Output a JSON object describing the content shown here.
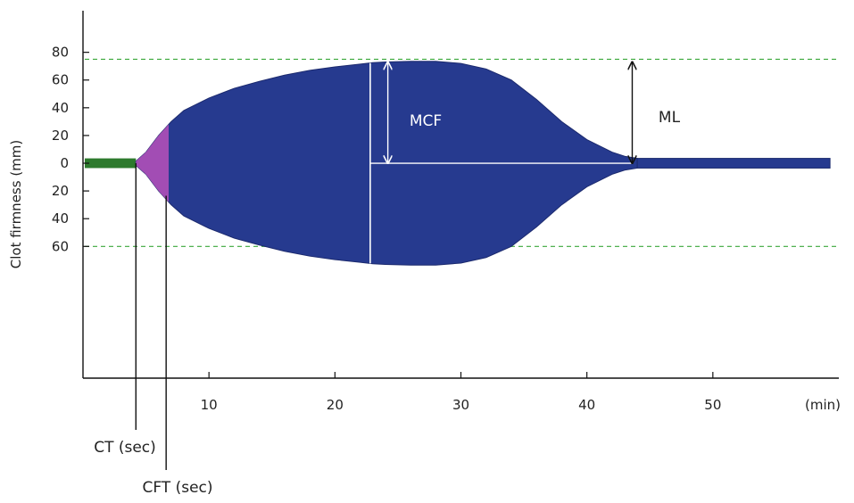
{
  "chart_data": {
    "type": "area",
    "ylabel": "Clot firmness (mm)",
    "x_unit_label": "(min)",
    "x_ticks": [
      10,
      20,
      30,
      40,
      50
    ],
    "xlim": [
      0,
      60
    ],
    "y_tick_labels": [
      "80",
      "60",
      "40",
      "20",
      "0",
      "20",
      "40",
      "60"
    ],
    "y_tick_values": [
      80,
      60,
      40,
      20,
      0,
      -20,
      -40,
      -60
    ],
    "ylim": [
      -155,
      110
    ],
    "grid": false,
    "reference_lines": [
      75,
      -60
    ],
    "baseline": {
      "x_start": 0,
      "x_end": 4.2,
      "color": "#2d7a2d"
    },
    "tail": {
      "x_start": 44,
      "x_end": 59.3,
      "half_width": 3.5
    },
    "clot_profile": {
      "x": [
        4.2,
        5,
        6,
        7,
        8,
        10,
        12,
        14,
        16,
        18,
        20,
        22,
        23,
        24,
        26,
        28,
        30,
        32,
        34,
        36,
        38,
        40,
        42,
        43,
        44
      ],
      "upper": [
        1.5,
        8,
        20,
        30,
        38,
        47,
        54,
        59,
        63.5,
        67,
        69.5,
        71.5,
        72.5,
        73,
        73.5,
        73.5,
        72,
        68,
        60,
        46,
        30,
        17,
        8,
        5,
        3.5
      ],
      "lower": [
        -1.5,
        -8,
        -20,
        -30,
        -38,
        -47,
        -54,
        -59,
        -63.5,
        -67,
        -69.5,
        -71.5,
        -72.5,
        -73,
        -73.5,
        -73.5,
        -72,
        -68,
        -60,
        -46,
        -30,
        -17,
        -8,
        -5,
        -3.5
      ]
    },
    "cft_segment": {
      "x_start": 4.2,
      "x_end": 6.8,
      "color": "#b050b8"
    },
    "colors": {
      "clot": "#263a8f",
      "baseline": "#2d7a2d",
      "cft": "#b050b8",
      "reference": "#3aa83a",
      "marker": "#ffffff"
    },
    "annotations": {
      "ct": {
        "label": "CT (sec)",
        "x": 4.2
      },
      "cft": {
        "label": "CFT (sec)",
        "x": 6.6
      },
      "mcf": {
        "label": "MCF",
        "x": 24.2,
        "y_top": 73,
        "y_bottom": 0,
        "max_line_x": 22.8
      },
      "ml": {
        "label": "ML",
        "x": 43.6,
        "y_top": 73,
        "y_bottom": 0
      }
    }
  }
}
